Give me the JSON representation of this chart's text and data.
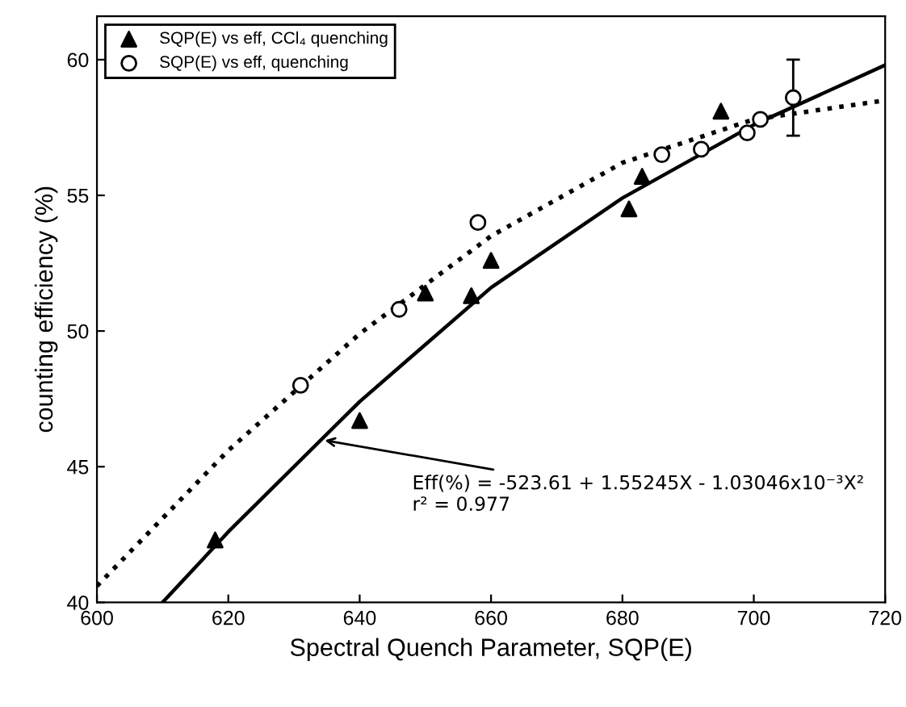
{
  "chart_data": {
    "type": "scatter",
    "xlabel": "Spectral Quench Parameter, SQP(E)",
    "ylabel": "counting efficiency (%)",
    "xlim": [
      600,
      720
    ],
    "ylim": [
      40,
      61.6
    ],
    "xticks": [
      600,
      620,
      640,
      660,
      680,
      700,
      720
    ],
    "yticks": [
      40,
      45,
      50,
      55,
      60
    ],
    "grid": false,
    "legend": "top left",
    "series": [
      {
        "name": "SQP(E) vs eff, CCl₄ quenching",
        "marker": "triangle",
        "color": "#000000",
        "x": [
          618,
          640,
          650,
          657,
          660,
          681,
          683,
          695
        ],
        "values": [
          42.3,
          46.7,
          51.4,
          51.3,
          52.6,
          54.5,
          55.7,
          58.1
        ]
      },
      {
        "name": "SQP(E) vs eff, quenching",
        "marker": "circle",
        "color": "#000000",
        "x": [
          631,
          646,
          658,
          686,
          692,
          699,
          701,
          706
        ],
        "values": [
          48.0,
          50.8,
          54.0,
          56.5,
          56.7,
          57.3,
          57.8,
          58.6
        ],
        "errors": [
          null,
          null,
          null,
          null,
          null,
          null,
          null,
          1.4
        ]
      },
      {
        "type": "line",
        "line_style": "solid",
        "color": "#000000",
        "x": [
          610,
          620,
          640,
          660,
          680,
          700,
          720
        ],
        "values": [
          40.0,
          42.6,
          47.4,
          51.6,
          54.9,
          57.6,
          59.8
        ]
      },
      {
        "type": "line",
        "line_style": "dotted",
        "color": "#000000",
        "x": [
          600,
          620,
          640,
          660,
          680,
          700,
          720
        ],
        "values": [
          40.6,
          45.6,
          49.9,
          53.5,
          56.2,
          57.8,
          58.5
        ]
      }
    ],
    "annotations": [
      {
        "text": "Eff(%) = -523.61 + 1.55245X - 1.03046x10⁻³X²\nr² = 0.977",
        "x": 634,
        "y": 46.0
      }
    ]
  }
}
